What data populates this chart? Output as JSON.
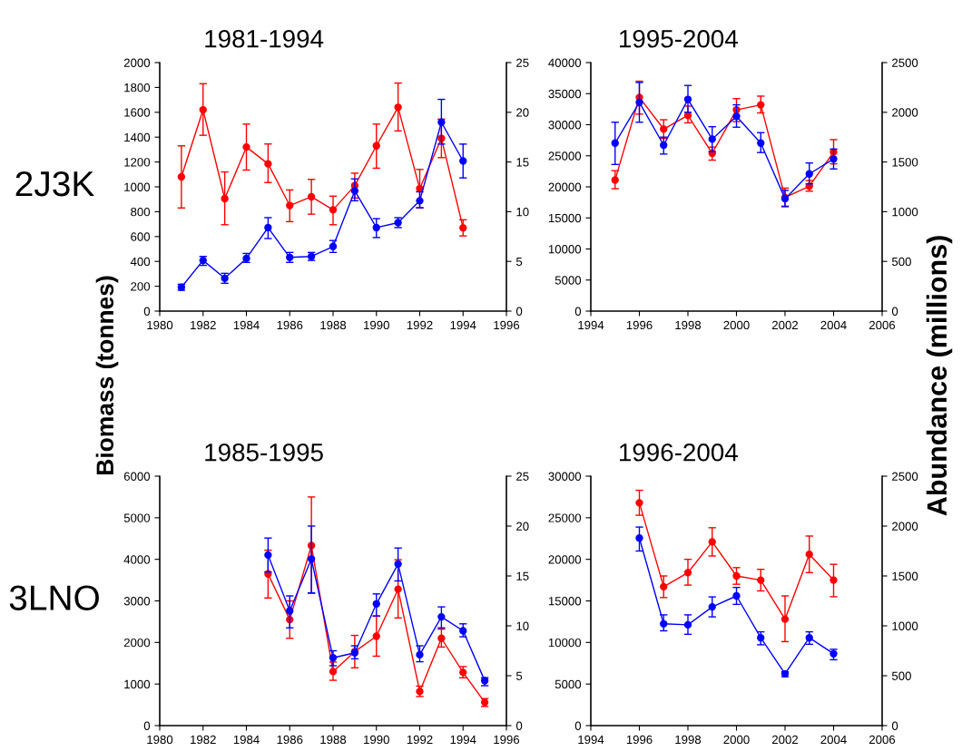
{
  "chart_data": [
    {
      "type": "line",
      "title": "1981-1994",
      "ylabel": "Biomass (tonnes)",
      "annotations": [
        "2J3K"
      ],
      "marker": "circle",
      "line_style": "solid",
      "grid": false,
      "legend": false,
      "x": [
        1981,
        1982,
        1983,
        1984,
        1985,
        1986,
        1987,
        1988,
        1989,
        1990,
        1991,
        1992,
        1993,
        1994
      ],
      "xlim": [
        1980,
        1996
      ],
      "xticks": [
        1980,
        1982,
        1984,
        1986,
        1988,
        1990,
        1992,
        1994,
        1996
      ],
      "ylim": [
        0,
        2000
      ],
      "yticks": [
        0,
        200,
        400,
        600,
        800,
        1000,
        1200,
        1400,
        1600,
        1800,
        2000
      ],
      "y2lim": [
        0,
        25
      ],
      "y2ticks": [
        0,
        5,
        10,
        15,
        20,
        25
      ],
      "series": [
        {
          "color": "#ff0000",
          "values": [
            1080,
            1620,
            905,
            1320,
            1185,
            850,
            920,
            815,
            1010,
            1330,
            1640,
            985,
            1390,
            670
          ],
          "errors": [
            [
              830,
              1330
            ],
            [
              1415,
              1830
            ],
            [
              695,
              1120
            ],
            [
              1135,
              1505
            ],
            [
              1035,
              1345
            ],
            [
              720,
              975
            ],
            [
              780,
              1060
            ],
            [
              695,
              925
            ],
            [
              910,
              1110
            ],
            [
              1150,
              1505
            ],
            [
              1450,
              1835
            ],
            [
              830,
              1140
            ],
            [
              1235,
              1545
            ],
            [
              605,
              735
            ]
          ]
        },
        {
          "color": "#0000ff",
          "axis": "y2",
          "values": [
            2.4,
            5.1,
            3.3,
            5.3,
            8.4,
            5.4,
            5.5,
            6.5,
            12.1,
            8.4,
            8.9,
            11.1,
            19,
            15.1
          ],
          "errors": [
            [
              2.1,
              2.7
            ],
            [
              4.6,
              5.5
            ],
            [
              2.8,
              3.8
            ],
            [
              4.9,
              5.8
            ],
            [
              7.3,
              9.4
            ],
            [
              4.9,
              5.9
            ],
            [
              5.1,
              5.9
            ],
            [
              5.9,
              7.1
            ],
            [
              11.1,
              13.3
            ],
            [
              7.4,
              9.3
            ],
            [
              8.4,
              9.4
            ],
            [
              10.4,
              12
            ],
            [
              16.8,
              21.3
            ],
            [
              13.4,
              16.8
            ]
          ]
        }
      ]
    },
    {
      "type": "line",
      "title": "1995-2004",
      "y2label": "Abundance (millions)",
      "marker": "circle",
      "line_style": "solid",
      "grid": false,
      "legend": false,
      "x": [
        1995,
        1996,
        1997,
        1998,
        1999,
        2000,
        2001,
        2002,
        2003,
        2004
      ],
      "xlim": [
        1994,
        2006
      ],
      "xticks": [
        1994,
        1996,
        1998,
        2000,
        2002,
        2004,
        2006
      ],
      "ylim": [
        0,
        40000
      ],
      "yticks": [
        0,
        5000,
        10000,
        15000,
        20000,
        25000,
        30000,
        35000,
        40000
      ],
      "y2lim": [
        0,
        2500
      ],
      "y2ticks": [
        0,
        500,
        1000,
        1500,
        2000,
        2500
      ],
      "series": [
        {
          "color": "#ff0000",
          "values": [
            21100,
            34400,
            29300,
            31500,
            25400,
            32400,
            33200,
            18300,
            20100,
            25600
          ],
          "errors": [
            [
              19700,
              22600
            ],
            [
              31700,
              37000
            ],
            [
              27800,
              30800
            ],
            [
              30300,
              33000
            ],
            [
              24300,
              26400
            ],
            [
              30500,
              34200
            ],
            [
              31900,
              34600
            ],
            [
              16900,
              19800
            ],
            [
              19300,
              21000
            ],
            [
              23700,
              27600
            ]
          ]
        },
        {
          "color": "#0000ff",
          "axis": "y2",
          "values": [
            1690,
            2100,
            1670,
            2130,
            1730,
            1960,
            1690,
            1130,
            1380,
            1530
          ],
          "errors": [
            [
              1475,
              1900
            ],
            [
              1900,
              2300
            ],
            [
              1580,
              1750
            ],
            [
              2000,
              2270
            ],
            [
              1605,
              1855
            ],
            [
              1850,
              2075
            ],
            [
              1595,
              1795
            ],
            [
              1050,
              1215
            ],
            [
              1280,
              1490
            ],
            [
              1430,
              1630
            ]
          ]
        }
      ]
    },
    {
      "type": "line",
      "title": "1985-1995",
      "annotations": [
        "3LNO"
      ],
      "marker": "circle",
      "line_style": "solid",
      "grid": false,
      "legend": false,
      "x": [
        1985,
        1986,
        1987,
        1988,
        1989,
        1990,
        1991,
        1992,
        1993,
        1994,
        1995
      ],
      "xlim": [
        1980,
        1996
      ],
      "xticks": [
        1980,
        1982,
        1984,
        1986,
        1988,
        1990,
        1992,
        1994,
        1996
      ],
      "ylim": [
        0,
        6000
      ],
      "yticks": [
        0,
        1000,
        2000,
        3000,
        4000,
        5000,
        6000
      ],
      "y2lim": [
        0,
        25
      ],
      "y2ticks": [
        0,
        5,
        10,
        15,
        20,
        25
      ],
      "series": [
        {
          "color": "#ff0000",
          "values": [
            3650,
            2550,
            4330,
            1300,
            1780,
            2150,
            3280,
            820,
            2100,
            1280,
            560
          ],
          "errors": [
            [
              3070,
              4220
            ],
            [
              2100,
              3000
            ],
            [
              3180,
              5500
            ],
            [
              1090,
              1530
            ],
            [
              1390,
              2170
            ],
            [
              1670,
              2630
            ],
            [
              2590,
              3990
            ],
            [
              700,
              950
            ],
            [
              1890,
              2320
            ],
            [
              1150,
              1420
            ],
            [
              460,
              650
            ]
          ]
        },
        {
          "color": "#0000ff",
          "axis": "y2",
          "values": [
            17.1,
            11.5,
            16.7,
            6.8,
            7.3,
            12.2,
            16.2,
            7.1,
            10.9,
            9.5,
            4.5
          ],
          "errors": [
            [
              15.4,
              18.8
            ],
            [
              9.8,
              13
            ],
            [
              13.3,
              20
            ],
            [
              6,
              7.5
            ],
            [
              6.7,
              8
            ],
            [
              11,
              13.2
            ],
            [
              14.5,
              17.8
            ],
            [
              6.4,
              8
            ],
            [
              9.8,
              11.9
            ],
            [
              8.9,
              10.2
            ],
            [
              4,
              4.8
            ]
          ]
        }
      ]
    },
    {
      "type": "line",
      "title": "1996-2004",
      "marker": "circle",
      "line_style": "solid",
      "grid": false,
      "legend": false,
      "x": [
        1996,
        1997,
        1998,
        1999,
        2000,
        2001,
        2002,
        2003,
        2004
      ],
      "xlim": [
        1994,
        2006
      ],
      "xticks": [
        1994,
        1996,
        1998,
        2000,
        2002,
        2004,
        2006
      ],
      "ylim": [
        0,
        30000
      ],
      "yticks": [
        0,
        5000,
        10000,
        15000,
        20000,
        25000,
        30000
      ],
      "y2lim": [
        0,
        2500
      ],
      "y2ticks": [
        0,
        500,
        1000,
        1500,
        2000,
        2500
      ],
      "series": [
        {
          "color": "#ff0000",
          "values": [
            26800,
            16700,
            18400,
            22100,
            18000,
            17500,
            12800,
            20600,
            17500
          ],
          "errors": [
            [
              25300,
              28300
            ],
            [
              15400,
              18000
            ],
            [
              16900,
              20000
            ],
            [
              20400,
              23800
            ],
            [
              17000,
              19000
            ],
            [
              16200,
              18800
            ],
            [
              10100,
              15600
            ],
            [
              18400,
              22800
            ],
            [
              15500,
              19400
            ]
          ]
        },
        {
          "color": "#0000ff",
          "axis": "y2",
          "values": [
            1880,
            1020,
            1010,
            1190,
            1300,
            880,
            520,
            880,
            720
          ],
          "errors": [
            [
              1750,
              1990
            ],
            [
              950,
              1110
            ],
            [
              915,
              1110
            ],
            [
              1090,
              1290
            ],
            [
              1215,
              1385
            ],
            [
              810,
              940
            ],
            [
              490,
              540
            ],
            [
              815,
              940
            ],
            [
              660,
              765
            ]
          ]
        }
      ]
    }
  ]
}
